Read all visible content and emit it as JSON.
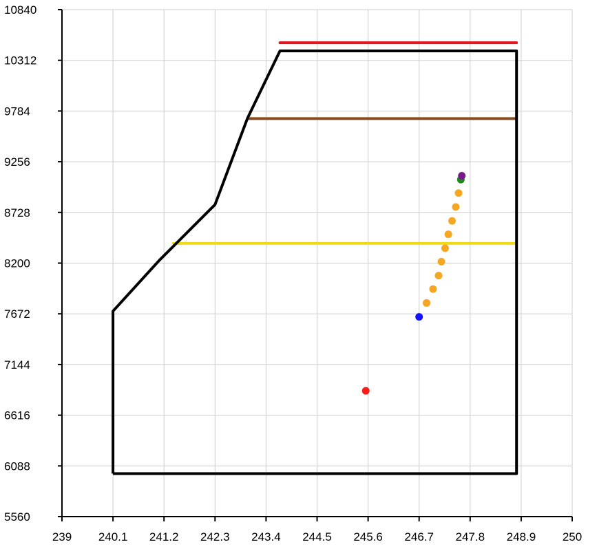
{
  "chart_data": {
    "type": "scatter",
    "title": "",
    "xlabel": "",
    "ylabel": "",
    "grid": true,
    "xlim": [
      239,
      250
    ],
    "ylim": [
      5560,
      10840
    ],
    "x_ticks": [
      "239",
      "240.1",
      "241.2",
      "242.3",
      "243.4",
      "244.5",
      "245.6",
      "246.7",
      "247.8",
      "248.9",
      "250"
    ],
    "y_ticks": [
      "5560",
      "6088",
      "6616",
      "7144",
      "7672",
      "8200",
      "8728",
      "9256",
      "9784",
      "10312",
      "10840"
    ],
    "outline": {
      "color": "#000000",
      "points": [
        [
          240.1,
          6008
        ],
        [
          240.1,
          7700
        ],
        [
          241.1,
          8230
        ],
        [
          242.3,
          8810
        ],
        [
          243.0,
          9710
        ],
        [
          243.7,
          10410
        ],
        [
          248.8,
          10410
        ],
        [
          248.8,
          6008
        ],
        [
          240.1,
          6008
        ]
      ]
    },
    "levels": [
      {
        "color": "#e8141c",
        "x": [
          243.7,
          248.8
        ],
        "y": 10495
      },
      {
        "color": "#8b4a1c",
        "x": [
          243.0,
          248.8
        ],
        "y": 9705
      },
      {
        "color": "#f0dc16",
        "x": [
          241.4,
          248.8
        ],
        "y": 8405
      }
    ],
    "points": [
      {
        "x": 245.55,
        "y": 6870,
        "color": "#ff1a1a"
      },
      {
        "x": 246.7,
        "y": 7640,
        "color": "#1414ff"
      },
      {
        "x": 246.86,
        "y": 7785,
        "color": "#f5a623"
      },
      {
        "x": 247.0,
        "y": 7930,
        "color": "#f5a623"
      },
      {
        "x": 247.12,
        "y": 8070,
        "color": "#f5a623"
      },
      {
        "x": 247.18,
        "y": 8215,
        "color": "#f5a623"
      },
      {
        "x": 247.26,
        "y": 8355,
        "color": "#f5a623"
      },
      {
        "x": 247.33,
        "y": 8500,
        "color": "#f5a623"
      },
      {
        "x": 247.41,
        "y": 8640,
        "color": "#f5a623"
      },
      {
        "x": 247.49,
        "y": 8785,
        "color": "#f5a623"
      },
      {
        "x": 247.55,
        "y": 8930,
        "color": "#f5a623"
      },
      {
        "x": 247.6,
        "y": 9070,
        "color": "#1a8a1a"
      },
      {
        "x": 247.62,
        "y": 9110,
        "color": "#7a1a8a"
      }
    ]
  }
}
